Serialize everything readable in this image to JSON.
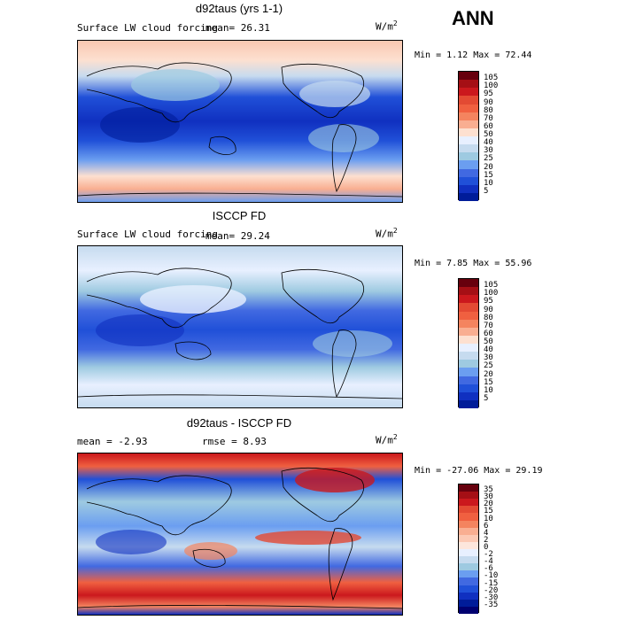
{
  "header": {
    "season": "ANN"
  },
  "panels": [
    {
      "title": "d92taus (yrs 1-1)",
      "field": "Surface LW cloud forcing",
      "mean_text": "mean=  26.31",
      "units": "W/m",
      "units_sup": "2",
      "minmax": "Min =   1.12 Max =  72.44",
      "colorbar": {
        "ticks": [
          "105",
          "100",
          "95",
          "90",
          "80",
          "70",
          "60",
          "50",
          "40",
          "30",
          "25",
          "20",
          "15",
          "10",
          "5"
        ],
        "colors": [
          "#67000d",
          "#a50f15",
          "#cb181d",
          "#e34a33",
          "#f06040",
          "#f4845f",
          "#f9ae91",
          "#fde0d0",
          "#e8f0ff",
          "#c6dbef",
          "#9ecae1",
          "#6b9ef0",
          "#4169e1",
          "#2050d8",
          "#1030c0",
          "#001c99"
        ]
      }
    },
    {
      "title": "ISCCP FD",
      "field": "Surface LW cloud forcing",
      "mean_text": "mean=  29.24",
      "units": "W/m",
      "units_sup": "2",
      "minmax": "Min =   7.85 Max =  55.96",
      "colorbar": {
        "ticks": [
          "105",
          "100",
          "95",
          "90",
          "80",
          "70",
          "60",
          "50",
          "40",
          "30",
          "25",
          "20",
          "15",
          "10",
          "5"
        ],
        "colors": [
          "#67000d",
          "#a50f15",
          "#cb181d",
          "#e34a33",
          "#f06040",
          "#f4845f",
          "#f9ae91",
          "#fde0d0",
          "#e8f0ff",
          "#c6dbef",
          "#9ecae1",
          "#6b9ef0",
          "#4169e1",
          "#2050d8",
          "#1030c0",
          "#001c99"
        ]
      }
    },
    {
      "title": "d92taus - ISCCP FD",
      "mean_text": "mean =  -2.93",
      "rmse_text": "rmse =   8.93",
      "units": "W/m",
      "units_sup": "2",
      "minmax": "Min = -27.06 Max =  29.19",
      "colorbar": {
        "ticks": [
          "35",
          "30",
          "20",
          "15",
          "10",
          "6",
          "4",
          "2",
          "0",
          "-2",
          "-4",
          "-6",
          "-10",
          "-15",
          "-20",
          "-30",
          "-35"
        ],
        "colors": [
          "#67000d",
          "#a50f15",
          "#cb181d",
          "#e34a33",
          "#f06040",
          "#f4845f",
          "#f9ae91",
          "#fcc9b4",
          "#fde6dc",
          "#e8f0ff",
          "#c6dbef",
          "#9ecae1",
          "#6b9ef0",
          "#4169e1",
          "#2050d8",
          "#1030c0",
          "#001c99",
          "#000070"
        ]
      }
    }
  ]
}
